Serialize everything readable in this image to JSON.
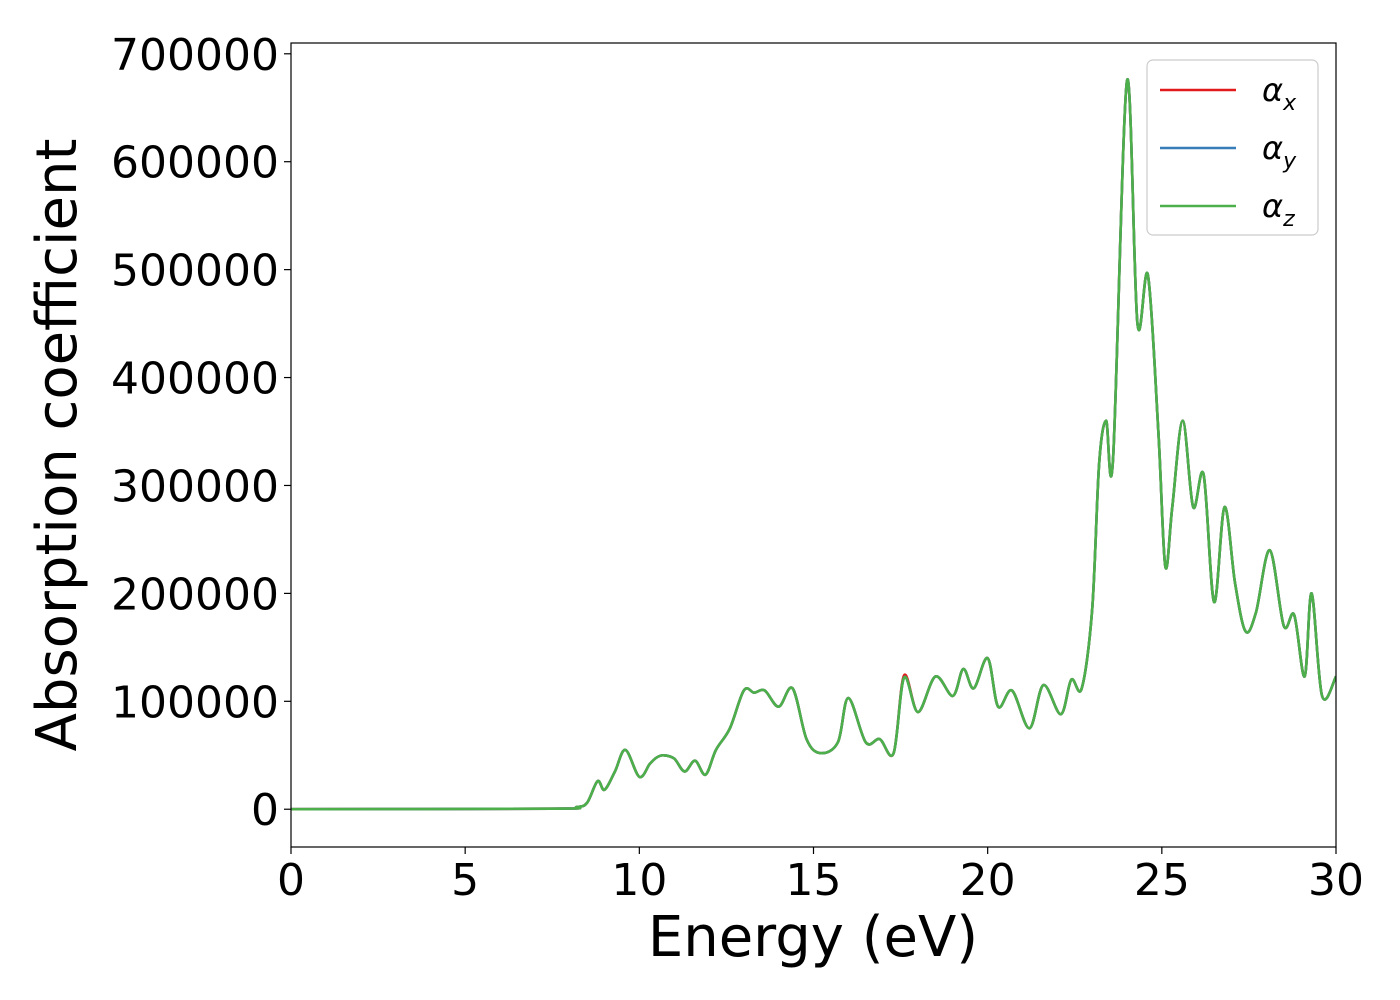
{
  "chart_data": {
    "type": "line",
    "title": "",
    "xlabel": "Energy (eV)",
    "ylabel": "Absorption coefficient",
    "xlim": [
      0,
      30
    ],
    "ylim": [
      -35000,
      710000
    ],
    "xticks": [
      0,
      5,
      10,
      15,
      20,
      25,
      30
    ],
    "xtick_labels": [
      "0",
      "5",
      "10",
      "15",
      "20",
      "25",
      "30"
    ],
    "yticks": [
      0,
      100000,
      200000,
      300000,
      400000,
      500000,
      600000,
      700000
    ],
    "ytick_labels": [
      "0",
      "100000",
      "200000",
      "300000",
      "400000",
      "500000",
      "600000",
      "700000"
    ],
    "grid": false,
    "legend_position": "upper-right",
    "x": [
      0,
      7.5,
      8.2,
      8.5,
      8.8,
      9.0,
      9.3,
      9.6,
      10.0,
      10.3,
      10.5,
      10.7,
      11.0,
      11.3,
      11.6,
      11.9,
      12.2,
      12.6,
      13.0,
      13.3,
      13.6,
      14.0,
      14.4,
      14.8,
      15.2,
      15.7,
      16.0,
      16.5,
      16.9,
      17.3,
      17.6,
      18.0,
      18.5,
      19.0,
      19.3,
      19.6,
      20.0,
      20.3,
      20.7,
      21.2,
      21.6,
      22.1,
      22.4,
      22.7,
      23.0,
      23.2,
      23.4,
      23.6,
      24.0,
      24.3,
      24.6,
      24.9,
      25.1,
      25.3,
      25.6,
      25.9,
      26.2,
      26.5,
      26.8,
      27.1,
      27.4,
      27.7,
      28.1,
      28.5,
      28.8,
      29.1,
      29.3,
      29.6,
      30.0
    ],
    "series": [
      {
        "name": "α_x",
        "color": "#e31a1c",
        "values": [
          0,
          500,
          2000,
          6000,
          26000,
          18000,
          35000,
          55000,
          30000,
          42000,
          48000,
          50000,
          47000,
          35000,
          45000,
          32000,
          55000,
          75000,
          110000,
          108000,
          110000,
          95000,
          112000,
          65000,
          52000,
          62000,
          103000,
          62000,
          65000,
          52000,
          124000,
          90000,
          123000,
          105000,
          130000,
          112000,
          140000,
          95000,
          110000,
          75000,
          115000,
          88000,
          120000,
          112000,
          185000,
          320000,
          360000,
          325000,
          675000,
          450000,
          495000,
          350000,
          225000,
          280000,
          360000,
          280000,
          310000,
          192000,
          280000,
          210000,
          165000,
          182000,
          240000,
          170000,
          180000,
          123000,
          200000,
          105000,
          123000
        ]
      },
      {
        "name": "α_y",
        "color": "#377eb8",
        "values": [
          0,
          500,
          2000,
          6000,
          26000,
          18000,
          35000,
          55000,
          30000,
          42000,
          48000,
          50000,
          47000,
          35000,
          45000,
          32000,
          55000,
          75000,
          110000,
          108000,
          110000,
          95000,
          112000,
          65000,
          52000,
          62000,
          103000,
          62000,
          65000,
          52000,
          122000,
          90000,
          123000,
          105000,
          130000,
          112000,
          140000,
          95000,
          110000,
          75000,
          115000,
          88000,
          120000,
          112000,
          185000,
          320000,
          360000,
          325000,
          675000,
          450000,
          495000,
          350000,
          225000,
          280000,
          360000,
          280000,
          310000,
          192000,
          280000,
          210000,
          165000,
          182000,
          240000,
          170000,
          180000,
          123000,
          200000,
          105000,
          123000
        ]
      },
      {
        "name": "α_z",
        "color": "#4daf4a",
        "values": [
          0,
          500,
          2000,
          6000,
          26000,
          18000,
          35000,
          55000,
          30000,
          42000,
          48000,
          50000,
          47000,
          35000,
          45000,
          32000,
          55000,
          75000,
          110000,
          108000,
          110000,
          95000,
          112000,
          65000,
          52000,
          62000,
          103000,
          62000,
          65000,
          52000,
          122000,
          90000,
          123000,
          105000,
          130000,
          112000,
          140000,
          95000,
          110000,
          75000,
          115000,
          88000,
          120000,
          112000,
          185000,
          320000,
          360000,
          325000,
          675000,
          450000,
          495000,
          350000,
          225000,
          280000,
          360000,
          280000,
          310000,
          192000,
          280000,
          210000,
          165000,
          182000,
          240000,
          170000,
          180000,
          123000,
          200000,
          105000,
          123000
        ]
      }
    ],
    "legend": [
      {
        "symbol": "α",
        "sub": "x",
        "color": "#e31a1c"
      },
      {
        "symbol": "α",
        "sub": "y",
        "color": "#377eb8"
      },
      {
        "symbol": "α",
        "sub": "z",
        "color": "#4daf4a"
      }
    ]
  }
}
